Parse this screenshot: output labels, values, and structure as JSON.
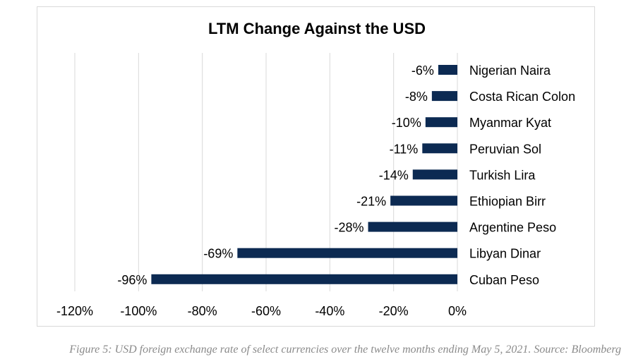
{
  "chart_data": {
    "type": "bar",
    "orientation": "horizontal",
    "title": "LTM Change Against the USD",
    "categories": [
      "Nigerian Naira",
      "Costa Rican Colon",
      "Myanmar Kyat",
      "Peruvian Sol",
      "Turkish Lira",
      "Ethiopian Birr",
      "Argentine Peso",
      "Libyan Dinar",
      "Cuban Peso"
    ],
    "values": [
      -6,
      -8,
      -10,
      -11,
      -14,
      -21,
      -28,
      -69,
      -96
    ],
    "data_labels": [
      "-6%",
      "-8%",
      "-10%",
      "-11%",
      "-14%",
      "-21%",
      "-28%",
      "-69%",
      "-96%"
    ],
    "xlim": [
      -120,
      0
    ],
    "x_ticks": [
      -120,
      -100,
      -80,
      -60,
      -40,
      -20,
      0
    ],
    "x_tick_labels": [
      "-120%",
      "-100%",
      "-80%",
      "-60%",
      "-40%",
      "-20%",
      "0%"
    ],
    "grid": "vertical",
    "bar_color": "#0c2a52",
    "grid_color": "#d9d9d9"
  },
  "caption": "Figure 5: USD foreign exchange rate of select currencies over the twelve months ending May 5, 2021. Source: Bloomberg"
}
